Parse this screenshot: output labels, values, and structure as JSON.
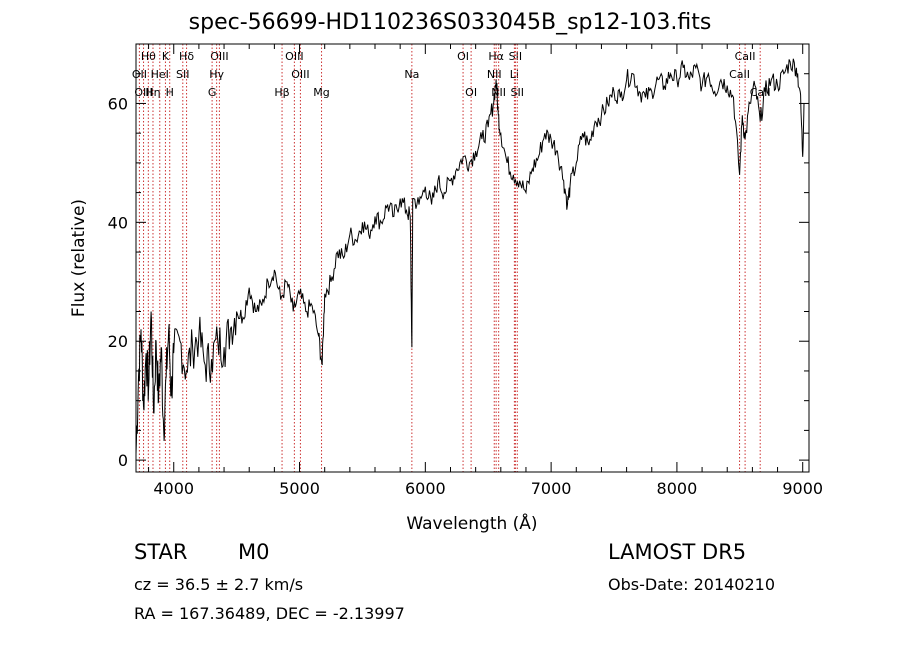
{
  "header": {
    "title": "spec-56699-HD110236S033045B_sp12-103.fits"
  },
  "info": {
    "object_class": "STAR",
    "subclass": "M0",
    "redshift_text": "cz = 36.5 ± 2.7 km/s",
    "coords_text": "RA = 167.36489, DEC =  -2.13997",
    "survey": "LAMOST  DR5",
    "obs_date_text": "Obs-Date: 20140210"
  },
  "chart_data": {
    "type": "line",
    "title": "spec-56699-HD110236S033045B_sp12-103.fits",
    "xlabel": "Wavelength (Å)",
    "ylabel": "Flux (relative)",
    "xlim": [
      3700,
      9050
    ],
    "ylim": [
      -2,
      70
    ],
    "xticks": [
      4000,
      5000,
      6000,
      7000,
      8000,
      9000
    ],
    "yticks": [
      0,
      20,
      40,
      60
    ],
    "grid": false,
    "line_color": "#000000",
    "marker_color": "#cc3333",
    "series": [
      {
        "x": [
          3700,
          3720,
          3740,
          3760,
          3780,
          3800,
          3820,
          3840,
          3860,
          3880,
          3900,
          3920,
          3940,
          3960,
          3980,
          4000,
          4050,
          4100,
          4150,
          4200,
          4250,
          4300,
          4350,
          4400,
          4450,
          4500,
          4550,
          4600,
          4650,
          4700,
          4750,
          4800,
          4850,
          4900,
          4950,
          5000,
          5050,
          5100,
          5150,
          5180,
          5200,
          5250,
          5300,
          5350,
          5400,
          5450,
          5500,
          5550,
          5600,
          5650,
          5700,
          5750,
          5800,
          5850,
          5880,
          5893,
          5900,
          5950,
          6000,
          6050,
          6100,
          6150,
          6200,
          6250,
          6300,
          6350,
          6400,
          6450,
          6500,
          6540,
          6563,
          6580,
          6600,
          6650,
          6700,
          6750,
          6800,
          6850,
          6900,
          6950,
          7000,
          7050,
          7100,
          7130,
          7150,
          7200,
          7250,
          7300,
          7350,
          7400,
          7450,
          7500,
          7550,
          7600,
          7650,
          7700,
          7750,
          7800,
          7850,
          7900,
          7950,
          8000,
          8050,
          8100,
          8150,
          8200,
          8250,
          8300,
          8350,
          8400,
          8450,
          8498,
          8520,
          8542,
          8580,
          8620,
          8662,
          8700,
          8750,
          8800,
          8850,
          8900,
          8950,
          8980,
          9000,
          9010
        ],
        "y": [
          1,
          14,
          22,
          9,
          18,
          12,
          25,
          8,
          20,
          10,
          19,
          5,
          14,
          22,
          11,
          18,
          20,
          15,
          19,
          21,
          16,
          17,
          20,
          19,
          22,
          25,
          24,
          29,
          25,
          26,
          30,
          32,
          27,
          30,
          25,
          28,
          25,
          26,
          21,
          16,
          28,
          30,
          35,
          34,
          38,
          37,
          40,
          38,
          41,
          40,
          43,
          41,
          44,
          42,
          41,
          19,
          44,
          43,
          46,
          43,
          47,
          45,
          47,
          49,
          51,
          50,
          52,
          54,
          56,
          60,
          64,
          58,
          55,
          50,
          48,
          47,
          45,
          49,
          51,
          55,
          54,
          52,
          47,
          43,
          46,
          50,
          55,
          53,
          57,
          58,
          60,
          62,
          61,
          64,
          65,
          62,
          61,
          62,
          64,
          63,
          65,
          64,
          66,
          64,
          66,
          63,
          65,
          62,
          64,
          63,
          61,
          48,
          58,
          54,
          60,
          63,
          57,
          62,
          64,
          63,
          65,
          67,
          66,
          62,
          51,
          60
        ]
      }
    ],
    "line_markers": [
      {
        "label": "Hθ",
        "wl": 3798,
        "row": 0
      },
      {
        "label": "OII",
        "wl": 3727,
        "row": 1
      },
      {
        "label": "OIII",
        "wl": 3760,
        "row": 2
      },
      {
        "label": "Hη",
        "wl": 3835,
        "row": 2
      },
      {
        "label": "K",
        "wl": 3934,
        "row": 0
      },
      {
        "label": "HeI",
        "wl": 3889,
        "row": 1
      },
      {
        "label": "H",
        "wl": 3968,
        "row": 2
      },
      {
        "label": "Hδ",
        "wl": 4102,
        "row": 0
      },
      {
        "label": "SII",
        "wl": 4072,
        "row": 1
      },
      {
        "label": "OIII",
        "wl": 4363,
        "row": 0
      },
      {
        "label": "Hγ",
        "wl": 4341,
        "row": 1
      },
      {
        "label": "G",
        "wl": 4305,
        "row": 2
      },
      {
        "label": "Hβ",
        "wl": 4861,
        "row": 2
      },
      {
        "label": "OIII",
        "wl": 4959,
        "row": 0
      },
      {
        "label": "OIII",
        "wl": 5007,
        "row": 1
      },
      {
        "label": "Mg",
        "wl": 5175,
        "row": 2
      },
      {
        "label": "Na",
        "wl": 5893,
        "row": 1
      },
      {
        "label": "OI",
        "wl": 6300,
        "row": 0
      },
      {
        "label": "OI",
        "wl": 6364,
        "row": 2
      },
      {
        "label": "Hα",
        "wl": 6563,
        "row": 0
      },
      {
        "label": "NII",
        "wl": 6548,
        "row": 1
      },
      {
        "label": "NII",
        "wl": 6583,
        "row": 2
      },
      {
        "label": "SII",
        "wl": 6716,
        "row": 0
      },
      {
        "label": "Li",
        "wl": 6708,
        "row": 1
      },
      {
        "label": "SII",
        "wl": 6731,
        "row": 2
      },
      {
        "label": "CaII",
        "wl": 8542,
        "row": 0
      },
      {
        "label": "CaII",
        "wl": 8498,
        "row": 1
      },
      {
        "label": "CaII",
        "wl": 8662,
        "row": 2
      }
    ]
  }
}
